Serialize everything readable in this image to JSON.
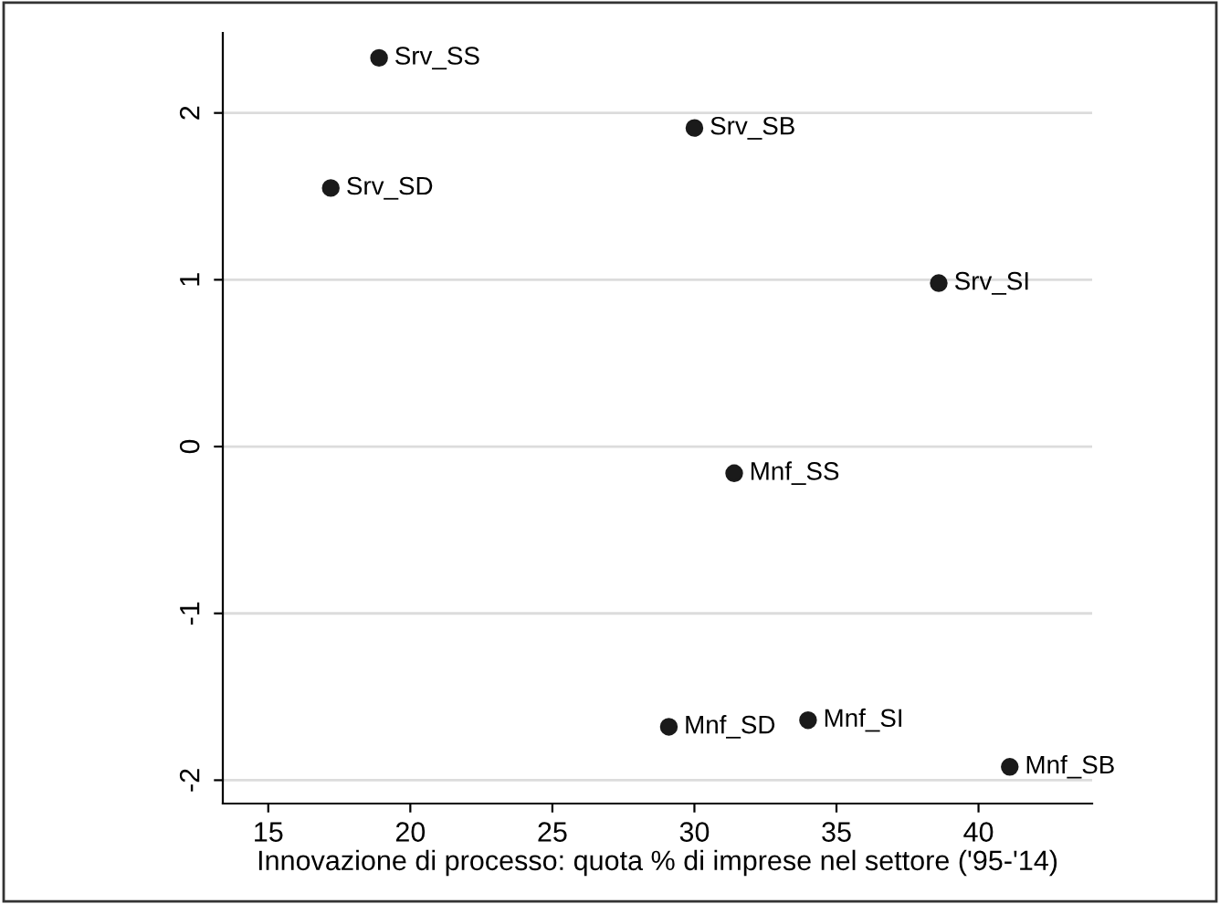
{
  "chart_data": {
    "type": "scatter",
    "xlabel": "Innovazione di processo: quota % di imprese nel settore ('95-'14)",
    "x": [
      18.9,
      30.0,
      17.2,
      38.6,
      31.4,
      29.1,
      34.0,
      41.1
    ],
    "series": [
      {
        "color": "#1a1a1a",
        "values": [
          2.33,
          1.91,
          1.55,
          0.98,
          -0.16,
          -1.68,
          -1.64,
          -1.92
        ]
      }
    ],
    "annotations": [
      {
        "text": "Srv_SS",
        "x": 18.9,
        "y": 2.33
      },
      {
        "text": "Srv_SB",
        "x": 30.0,
        "y": 1.91
      },
      {
        "text": "Srv_SD",
        "x": 17.2,
        "y": 1.55
      },
      {
        "text": "Srv_SI",
        "x": 38.6,
        "y": 0.98
      },
      {
        "text": "Mnf_SS",
        "x": 31.4,
        "y": -0.16
      },
      {
        "text": "Mnf_SD",
        "x": 29.1,
        "y": -1.68
      },
      {
        "text": "Mnf_SI",
        "x": 34.0,
        "y": -1.64
      },
      {
        "text": "Mnf_SB",
        "x": 41.1,
        "y": -1.92
      }
    ],
    "xlim": [
      13.4,
      44.0
    ],
    "ylim": [
      -2.14,
      2.48
    ],
    "xticks": [
      15,
      20,
      25,
      30,
      35,
      40
    ],
    "yticks": [
      -2,
      -1,
      0,
      1,
      2
    ],
    "grid": "y",
    "marker": "circle",
    "legend": false
  }
}
